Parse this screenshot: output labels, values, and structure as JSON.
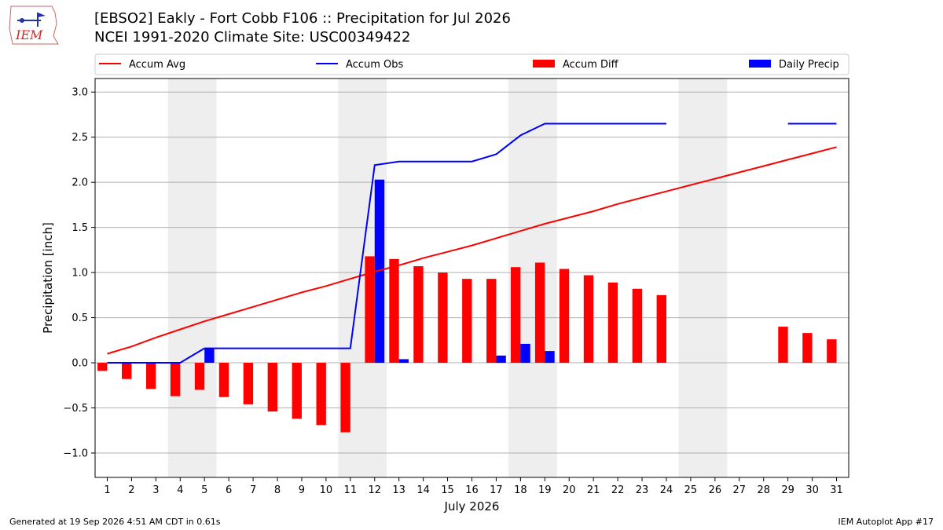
{
  "header": {
    "title_line1": "[EBSO2] Eakly - Fort Cobb F106 :: Precipitation for Jul 2026",
    "title_line2": "NCEI 1991-2020 Climate Site: USC00349422",
    "logo_text": "IEM"
  },
  "footer": {
    "generated": "Generated at 19 Sep 2026 4:51 AM CDT in 0.61s",
    "app": "IEM Autoplot App #17"
  },
  "colors": {
    "accum_avg": "#ff0000",
    "accum_obs": "#0000ff",
    "accum_diff": "#ff0000",
    "daily_precip": "#0000ff",
    "weekend_shade": "#eeeeee",
    "grid": "#b0b0b0"
  },
  "chart_data": {
    "type": "bar",
    "xlabel": "July 2026",
    "ylabel": "Precipitation [inch]",
    "ylim": [
      -1.27,
      3.15
    ],
    "yticks": [
      -1.0,
      -0.5,
      0.0,
      0.5,
      1.0,
      1.5,
      2.0,
      2.5,
      3.0
    ],
    "ytick_labels": [
      "−1.0",
      "−0.5",
      "0.0",
      "0.5",
      "1.0",
      "1.5",
      "2.0",
      "2.5",
      "3.0"
    ],
    "x": [
      1,
      2,
      3,
      4,
      5,
      6,
      7,
      8,
      9,
      10,
      11,
      12,
      13,
      14,
      15,
      16,
      17,
      18,
      19,
      20,
      21,
      22,
      23,
      24,
      25,
      26,
      27,
      28,
      29,
      30,
      31
    ],
    "x_tick_labels": [
      "1",
      "2",
      "3",
      "4",
      "5",
      "6",
      "7",
      "8",
      "9",
      "10",
      "11",
      "12",
      "13",
      "14",
      "15",
      "16",
      "17",
      "18",
      "19",
      "20",
      "21",
      "22",
      "23",
      "24",
      "25",
      "26",
      "27",
      "28",
      "29",
      "30",
      "31"
    ],
    "grid": "horizontal",
    "legend_placement": "top",
    "weekend_spans": [
      [
        3.5,
        5.5
      ],
      [
        10.5,
        12.5
      ],
      [
        17.5,
        19.5
      ],
      [
        24.5,
        26.5
      ]
    ],
    "series": [
      {
        "name": "Accum Avg",
        "kind": "line",
        "values": [
          0.1,
          0.18,
          0.28,
          0.37,
          0.46,
          0.54,
          0.62,
          0.7,
          0.78,
          0.85,
          0.93,
          1.01,
          1.08,
          1.16,
          1.23,
          1.3,
          1.38,
          1.46,
          1.54,
          1.61,
          1.68,
          1.76,
          1.83,
          1.9,
          1.97,
          2.04,
          2.11,
          2.18,
          2.25,
          2.32,
          2.39
        ]
      },
      {
        "name": "Accum Obs",
        "kind": "line",
        "values": [
          0.0,
          0.0,
          0.0,
          0.0,
          0.16,
          0.16,
          0.16,
          0.16,
          0.16,
          0.16,
          0.16,
          2.19,
          2.23,
          2.23,
          2.23,
          2.23,
          2.31,
          2.52,
          2.65,
          2.65,
          2.65,
          2.65,
          2.65,
          2.65,
          null,
          null,
          null,
          null,
          2.65,
          2.65,
          2.65
        ]
      },
      {
        "name": "Accum Diff",
        "kind": "bar",
        "values": [
          -0.09,
          -0.18,
          -0.29,
          -0.37,
          -0.3,
          -0.38,
          -0.46,
          -0.54,
          -0.62,
          -0.69,
          -0.77,
          1.18,
          1.15,
          1.07,
          1.0,
          0.93,
          0.93,
          1.06,
          1.11,
          1.04,
          0.97,
          0.89,
          0.82,
          0.75,
          null,
          null,
          null,
          null,
          0.4,
          0.33,
          0.26
        ]
      },
      {
        "name": "Daily Precip",
        "kind": "bar",
        "values": [
          0,
          0,
          0,
          0,
          0.16,
          0,
          0,
          0,
          0,
          0,
          0,
          2.03,
          0.04,
          0,
          0,
          0,
          0.08,
          0.21,
          0.13,
          0,
          0,
          0,
          0,
          0,
          null,
          null,
          null,
          null,
          0,
          0,
          0
        ]
      }
    ]
  }
}
